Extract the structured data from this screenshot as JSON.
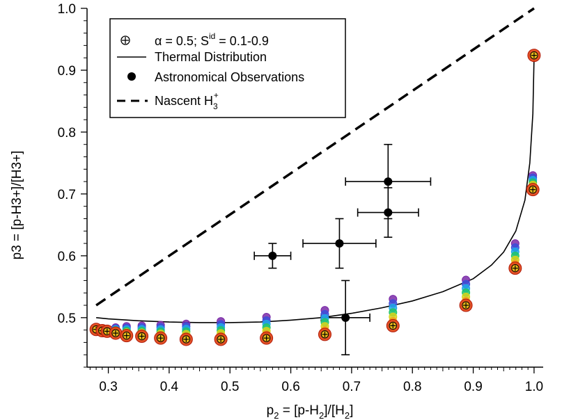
{
  "chart_data": {
    "type": "scatter",
    "title": "",
    "x_axis": {
      "label_main": "p",
      "label_sub": "2",
      "label_rest": " = [p-H",
      "label_sub2": "2",
      "label_rest2": "]/[H",
      "label_sub3": "2",
      "label_end": "]",
      "range": [
        0.265,
        1.015
      ],
      "ticks": [
        {
          "value": 0.3,
          "label": "0.3"
        },
        {
          "value": 0.4,
          "label": "0.4"
        },
        {
          "value": 0.5,
          "label": "0.5"
        },
        {
          "value": 0.6,
          "label": "0.6"
        },
        {
          "value": 0.7,
          "label": "0.7"
        },
        {
          "value": 0.8,
          "label": "0.8"
        },
        {
          "value": 0.9,
          "label": "0.9"
        },
        {
          "value": 1.0,
          "label": "1.0"
        }
      ]
    },
    "y_axis": {
      "label_text": "p3 = [p-H3+]/[H3+]",
      "range": [
        0.42,
        1.0
      ],
      "ticks": [
        {
          "value": 0.5,
          "label": "0.5"
        },
        {
          "value": 0.6,
          "label": "0.6"
        },
        {
          "value": 0.7,
          "label": "0.7"
        },
        {
          "value": 0.8,
          "label": "0.8"
        },
        {
          "value": 0.9,
          "label": "0.9"
        },
        {
          "value": 1.0,
          "label": "1.0"
        }
      ]
    },
    "legend": {
      "position": "top-left",
      "entries": [
        {
          "marker": "circle-plus",
          "text": "α = 0.5;  S",
          "sup": "id",
          "text_after": " = 0.1-0.9"
        },
        {
          "marker": "line",
          "text": "Thermal Distribution"
        },
        {
          "marker": "filled-circle",
          "text": "Astronomical Observations"
        },
        {
          "marker": "dashed-line",
          "text": "Nascent H",
          "sub": "3",
          "sup": "+"
        }
      ]
    },
    "series": [
      {
        "name": "Thermal Distribution",
        "kind": "line",
        "color": "#000000",
        "points": [
          [
            0.28,
            0.5
          ],
          [
            0.3,
            0.498
          ],
          [
            0.35,
            0.495
          ],
          [
            0.4,
            0.493
          ],
          [
            0.45,
            0.492
          ],
          [
            0.5,
            0.492
          ],
          [
            0.55,
            0.493
          ],
          [
            0.6,
            0.496
          ],
          [
            0.65,
            0.5
          ],
          [
            0.7,
            0.507
          ],
          [
            0.75,
            0.516
          ],
          [
            0.8,
            0.527
          ],
          [
            0.85,
            0.542
          ],
          [
            0.9,
            0.563
          ],
          [
            0.93,
            0.585
          ],
          [
            0.95,
            0.606
          ],
          [
            0.97,
            0.64
          ],
          [
            0.985,
            0.69
          ],
          [
            0.993,
            0.75
          ],
          [
            0.998,
            0.83
          ],
          [
            1.0,
            0.92
          ]
        ]
      },
      {
        "name": "Nascent H3+",
        "kind": "dashed-line",
        "color": "#000000",
        "points": [
          [
            0.28,
            0.52
          ],
          [
            1.0,
            1.0
          ]
        ]
      },
      {
        "name": "Astronomical Observations",
        "kind": "errorbar",
        "color": "#000000",
        "points": [
          {
            "x": 0.57,
            "y": 0.6,
            "xerr": 0.03,
            "yerr": 0.02
          },
          {
            "x": 0.68,
            "y": 0.62,
            "xerr": 0.06,
            "yerr": 0.04
          },
          {
            "x": 0.76,
            "y": 0.72,
            "xerr": 0.07,
            "yerr": 0.06
          },
          {
            "x": 0.76,
            "y": 0.67,
            "xerr": 0.05,
            "yerr": 0.04
          },
          {
            "x": 0.69,
            "y": 0.5,
            "xerr": 0.04,
            "yerr": 0.06
          }
        ]
      },
      {
        "name": "α = 0.5; Sid = 0.1-0.9",
        "kind": "circle-plus-stack",
        "colors": [
          "#7a2aa8",
          "#3b4fd9",
          "#1ea7e8",
          "#22c46a",
          "#d7d21a",
          "#f2a21b",
          "#e24a1a"
        ],
        "points": [
          {
            "x": 0.28,
            "y_top": 0.482,
            "y_bottom": 0.481
          },
          {
            "x": 0.29,
            "y_top": 0.481,
            "y_bottom": 0.479
          },
          {
            "x": 0.298,
            "y_top": 0.481,
            "y_bottom": 0.478
          },
          {
            "x": 0.312,
            "y_top": 0.484,
            "y_bottom": 0.475
          },
          {
            "x": 0.33,
            "y_top": 0.486,
            "y_bottom": 0.471
          },
          {
            "x": 0.355,
            "y_top": 0.487,
            "y_bottom": 0.47
          },
          {
            "x": 0.386,
            "y_top": 0.488,
            "y_bottom": 0.467
          },
          {
            "x": 0.428,
            "y_top": 0.49,
            "y_bottom": 0.465
          },
          {
            "x": 0.485,
            "y_top": 0.494,
            "y_bottom": 0.465
          },
          {
            "x": 0.56,
            "y_top": 0.501,
            "y_bottom": 0.467
          },
          {
            "x": 0.656,
            "y_top": 0.512,
            "y_bottom": 0.473
          },
          {
            "x": 0.768,
            "y_top": 0.53,
            "y_bottom": 0.487
          },
          {
            "x": 0.888,
            "y_top": 0.561,
            "y_bottom": 0.52
          },
          {
            "x": 0.969,
            "y_top": 0.62,
            "y_bottom": 0.58
          },
          {
            "x": 0.998,
            "y_top": 0.73,
            "y_bottom": 0.707
          },
          {
            "x": 1.0,
            "y_top": 0.924,
            "y_bottom": 0.924
          }
        ]
      }
    ]
  }
}
